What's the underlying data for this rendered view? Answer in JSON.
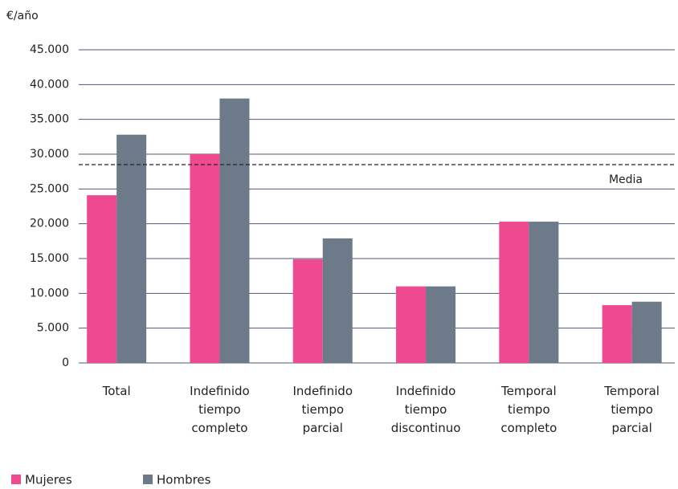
{
  "chart_data": {
    "type": "bar",
    "y_label": "€/año",
    "categories": [
      "Total",
      "Indefinido tiempo completo",
      "Indefinido tiempo parcial",
      "Indefinido tiempo discontinuo",
      "Temporal tiempo completo",
      "Temporal tiempo parcial"
    ],
    "series": [
      {
        "name": "Mujeres",
        "color": "#ef4a8f",
        "values": [
          24100,
          30000,
          14900,
          11000,
          20300,
          8300
        ]
      },
      {
        "name": "Hombres",
        "color": "#6d7a8a",
        "values": [
          32800,
          38000,
          17900,
          11000,
          20300,
          8800
        ]
      }
    ],
    "reference_line": {
      "label": "Media",
      "value": 28500
    },
    "ylim": [
      0,
      45000
    ],
    "yticks": [
      {
        "value": 0,
        "label": "0"
      },
      {
        "value": 5000,
        "label": "5.000"
      },
      {
        "value": 10000,
        "label": "10.000"
      },
      {
        "value": 15000,
        "label": "15.000"
      },
      {
        "value": 20000,
        "label": "20.000"
      },
      {
        "value": 25000,
        "label": "25.000"
      },
      {
        "value": 30000,
        "label": "30.000"
      },
      {
        "value": 35000,
        "label": "35.000"
      },
      {
        "value": 40000,
        "label": "40.000"
      },
      {
        "value": 45000,
        "label": "45.000"
      }
    ],
    "grid": true,
    "legend": "bottom-left"
  }
}
